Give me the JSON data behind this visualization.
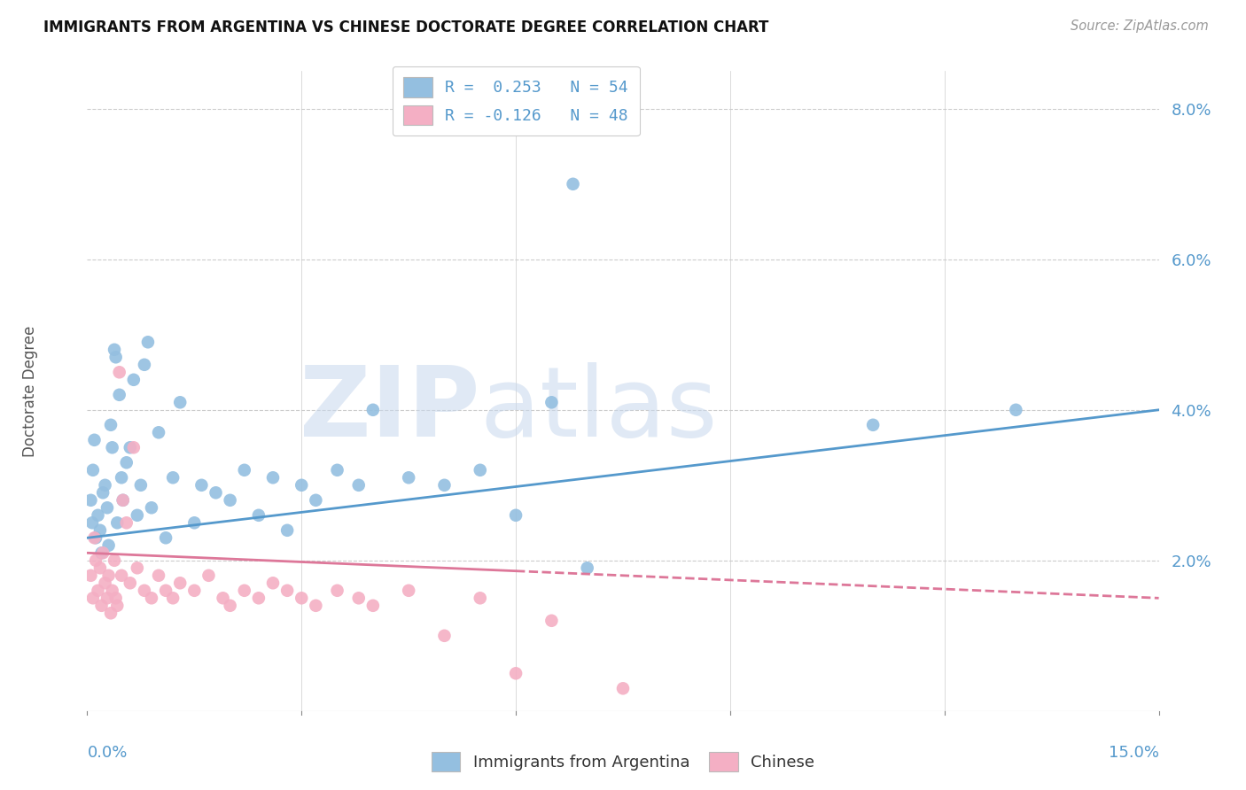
{
  "title": "IMMIGRANTS FROM ARGENTINA VS CHINESE DOCTORATE DEGREE CORRELATION CHART",
  "source": "Source: ZipAtlas.com",
  "ylabel": "Doctorate Degree",
  "xlim": [
    0.0,
    15.0
  ],
  "ylim": [
    0.0,
    8.5
  ],
  "ytick_values": [
    2.0,
    4.0,
    6.0,
    8.0
  ],
  "legend1_text": "R =  0.253   N = 54",
  "legend2_text": "R = -0.126   N = 48",
  "blue_color": "#94bfe0",
  "pink_color": "#f4afc4",
  "blue_line_color": "#5599cc",
  "pink_line_color": "#dd7799",
  "background_color": "#ffffff",
  "blue_line_start_y": 2.3,
  "blue_line_end_y": 4.0,
  "pink_line_start_y": 2.1,
  "pink_line_end_y": 1.5,
  "pink_solid_end_x": 6.0,
  "argentina_x": [
    0.05,
    0.07,
    0.08,
    0.1,
    0.12,
    0.15,
    0.18,
    0.2,
    0.22,
    0.25,
    0.28,
    0.3,
    0.33,
    0.35,
    0.38,
    0.4,
    0.42,
    0.45,
    0.48,
    0.5,
    0.55,
    0.6,
    0.65,
    0.7,
    0.75,
    0.8,
    0.85,
    0.9,
    1.0,
    1.1,
    1.2,
    1.3,
    1.5,
    1.6,
    1.8,
    2.0,
    2.2,
    2.4,
    2.6,
    2.8,
    3.0,
    3.2,
    3.5,
    3.8,
    4.0,
    4.5,
    5.0,
    5.5,
    6.0,
    6.5,
    7.0,
    11.0,
    13.0,
    6.8
  ],
  "argentina_y": [
    2.8,
    2.5,
    3.2,
    3.6,
    2.3,
    2.6,
    2.4,
    2.1,
    2.9,
    3.0,
    2.7,
    2.2,
    3.8,
    3.5,
    4.8,
    4.7,
    2.5,
    4.2,
    3.1,
    2.8,
    3.3,
    3.5,
    4.4,
    2.6,
    3.0,
    4.6,
    4.9,
    2.7,
    3.7,
    2.3,
    3.1,
    4.1,
    2.5,
    3.0,
    2.9,
    2.8,
    3.2,
    2.6,
    3.1,
    2.4,
    3.0,
    2.8,
    3.2,
    3.0,
    4.0,
    3.1,
    3.0,
    3.2,
    2.6,
    4.1,
    1.9,
    3.8,
    4.0,
    7.0
  ],
  "chinese_x": [
    0.05,
    0.08,
    0.1,
    0.12,
    0.15,
    0.18,
    0.2,
    0.22,
    0.25,
    0.28,
    0.3,
    0.33,
    0.35,
    0.38,
    0.4,
    0.42,
    0.45,
    0.48,
    0.5,
    0.55,
    0.6,
    0.65,
    0.7,
    0.8,
    0.9,
    1.0,
    1.1,
    1.2,
    1.3,
    1.5,
    1.7,
    1.9,
    2.0,
    2.2,
    2.4,
    2.6,
    2.8,
    3.0,
    3.2,
    3.5,
    3.8,
    4.0,
    4.5,
    5.0,
    5.5,
    6.0,
    6.5,
    7.5
  ],
  "chinese_y": [
    1.8,
    1.5,
    2.3,
    2.0,
    1.6,
    1.9,
    1.4,
    2.1,
    1.7,
    1.5,
    1.8,
    1.3,
    1.6,
    2.0,
    1.5,
    1.4,
    4.5,
    1.8,
    2.8,
    2.5,
    1.7,
    3.5,
    1.9,
    1.6,
    1.5,
    1.8,
    1.6,
    1.5,
    1.7,
    1.6,
    1.8,
    1.5,
    1.4,
    1.6,
    1.5,
    1.7,
    1.6,
    1.5,
    1.4,
    1.6,
    1.5,
    1.4,
    1.6,
    1.0,
    1.5,
    0.5,
    1.2,
    0.3
  ]
}
